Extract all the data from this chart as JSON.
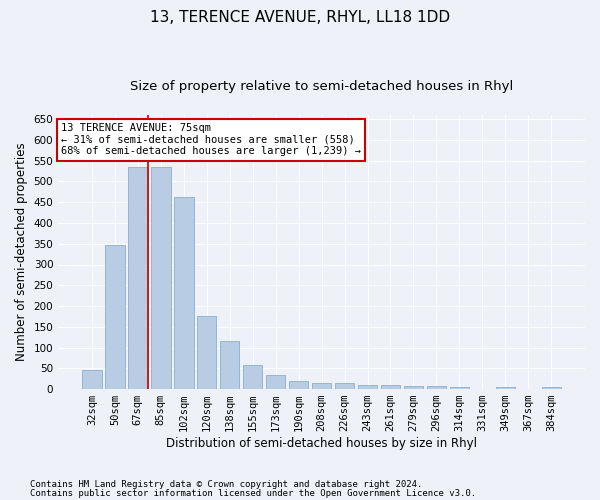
{
  "title": "13, TERENCE AVENUE, RHYL, LL18 1DD",
  "subtitle": "Size of property relative to semi-detached houses in Rhyl",
  "xlabel": "Distribution of semi-detached houses by size in Rhyl",
  "ylabel": "Number of semi-detached properties",
  "categories": [
    "32sqm",
    "50sqm",
    "67sqm",
    "85sqm",
    "102sqm",
    "120sqm",
    "138sqm",
    "155sqm",
    "173sqm",
    "190sqm",
    "208sqm",
    "226sqm",
    "243sqm",
    "261sqm",
    "279sqm",
    "296sqm",
    "314sqm",
    "331sqm",
    "349sqm",
    "367sqm",
    "384sqm"
  ],
  "values": [
    46,
    348,
    535,
    535,
    463,
    175,
    115,
    58,
    34,
    20,
    15,
    15,
    10,
    10,
    7,
    7,
    5,
    0,
    5,
    0,
    5
  ],
  "bar_color": "#b8cce4",
  "bar_edge_color": "#8ab0d0",
  "highlight_bar_index": 2,
  "highlight_line_color": "#cc0000",
  "annotation_line1": "13 TERENCE AVENUE: 75sqm",
  "annotation_line2": "← 31% of semi-detached houses are smaller (558)",
  "annotation_line3": "68% of semi-detached houses are larger (1,239) →",
  "annotation_box_color": "#ffffff",
  "annotation_box_edge_color": "#cc0000",
  "ylim": [
    0,
    660
  ],
  "yticks": [
    0,
    50,
    100,
    150,
    200,
    250,
    300,
    350,
    400,
    450,
    500,
    550,
    600,
    650
  ],
  "footer_line1": "Contains HM Land Registry data © Crown copyright and database right 2024.",
  "footer_line2": "Contains public sector information licensed under the Open Government Licence v3.0.",
  "background_color": "#eef2f8",
  "plot_bg_color": "#eef2f8",
  "grid_color": "#ffffff",
  "title_fontsize": 11,
  "subtitle_fontsize": 9.5,
  "axis_label_fontsize": 8.5,
  "tick_fontsize": 7.5,
  "annotation_fontsize": 7.5,
  "footer_fontsize": 6.5
}
